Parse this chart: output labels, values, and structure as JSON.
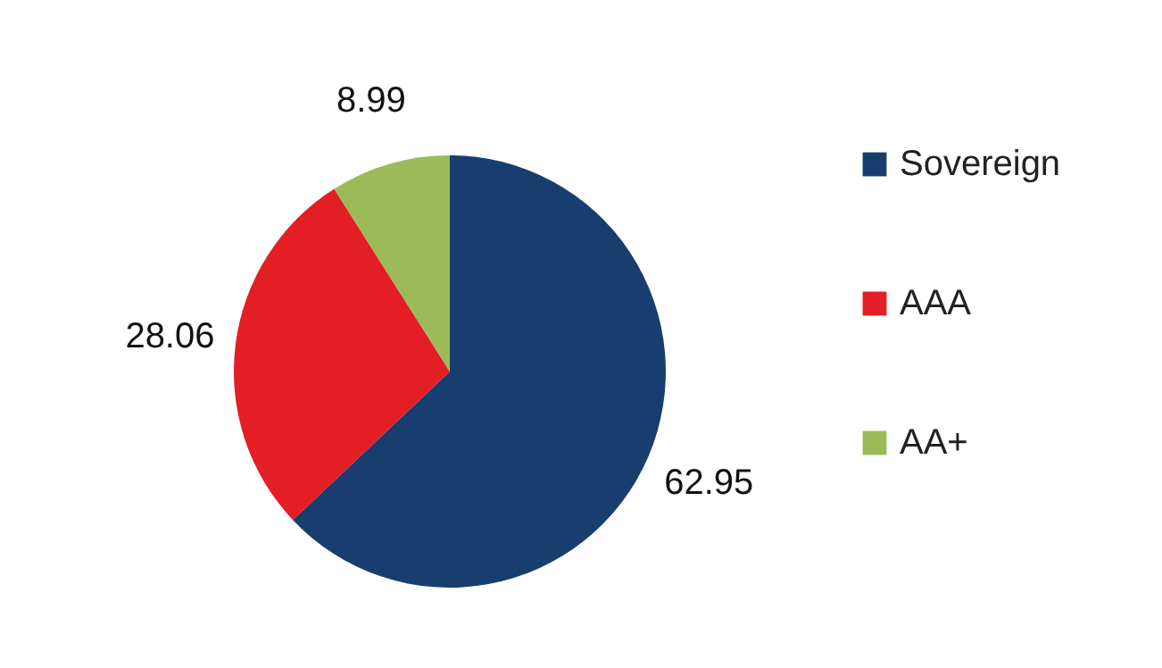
{
  "chart_data": {
    "type": "pie",
    "categories": [
      "Sovereign",
      "AAA",
      "AA+"
    ],
    "values": [
      62.95,
      28.06,
      8.99
    ],
    "colors": [
      "#173e6e",
      "#e31e24",
      "#9bbb59"
    ],
    "data_labels": true,
    "legend": "right"
  }
}
